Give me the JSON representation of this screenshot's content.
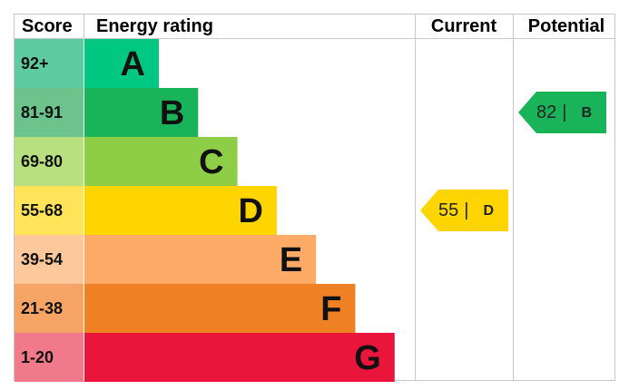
{
  "header": {
    "score": "Score",
    "rating": "Energy rating",
    "current": "Current",
    "potential": "Potential"
  },
  "bands": [
    {
      "score": "92+",
      "letter": "A",
      "color": "#00c781",
      "score_color": "#5fcba1"
    },
    {
      "score": "81-91",
      "letter": "B",
      "color": "#19b459",
      "score_color": "#6cc48c"
    },
    {
      "score": "69-80",
      "letter": "C",
      "color": "#8dce46",
      "score_color": "#b8e07f"
    },
    {
      "score": "55-68",
      "letter": "D",
      "color": "#ffd500",
      "score_color": "#ffe45a"
    },
    {
      "score": "39-54",
      "letter": "E",
      "color": "#fcaa65",
      "score_color": "#fdc89b"
    },
    {
      "score": "21-38",
      "letter": "F",
      "color": "#ef8023",
      "score_color": "#f5a465"
    },
    {
      "score": "1-20",
      "letter": "G",
      "color": "#e9153b",
      "score_color": "#f07a8a"
    }
  ],
  "current": {
    "value": 55,
    "separator": "|",
    "letter": "D"
  },
  "potential": {
    "value": 82,
    "separator": "|",
    "letter": "B"
  }
}
